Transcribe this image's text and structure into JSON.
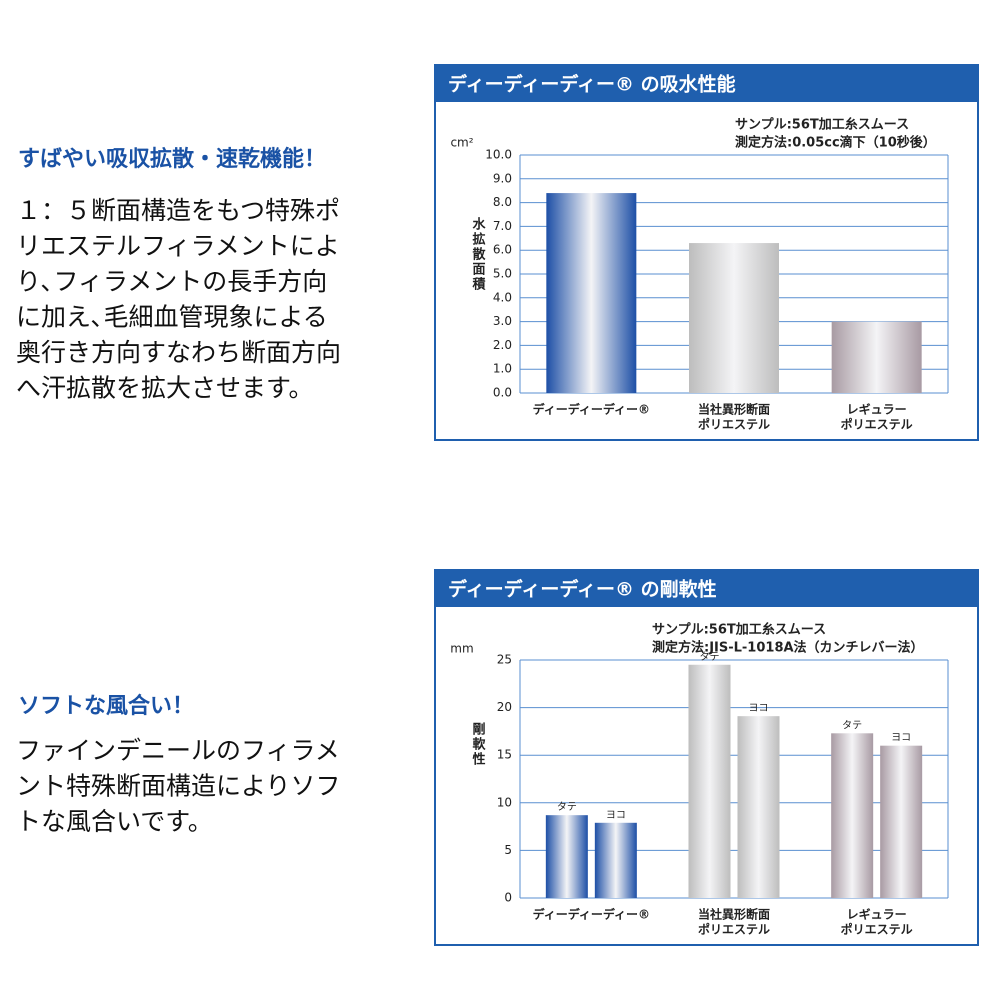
{
  "sections": [
    {
      "heading": "すばやい吸収拡散・速乾機能！",
      "lines": [
        "１：５断面構造をもつ特殊ポ",
        "リエステルフィラメントによ",
        "り､フィラメントの長手方向",
        "に加え､毛細血管現象による",
        "奥行き方向すなわち断面方向",
        "へ汗拡散を拡大させます。"
      ]
    },
    {
      "heading": "ソフトな風合い！",
      "lines": [
        "ファインデニールのフィラメ",
        "ント特殊断面構造によりソフ",
        "トな風合いです。"
      ]
    }
  ],
  "chart_data": [
    {
      "type": "bar",
      "title": "ディーディーディー® の吸水性能",
      "annotations": [
        "サンプル:56T加工糸スムース",
        "測定方法:0.05cc滴下（10秒後）"
      ],
      "unit": "cm²",
      "y_label": "水拡散面積",
      "categories": [
        [
          "ディーディーディー®"
        ],
        [
          "当社異形断面",
          "ポリエステル"
        ],
        [
          "レギュラー",
          "ポリエステル"
        ]
      ],
      "colors": [
        "#1d4fa6",
        "#bdbdbd",
        "#a89aa3"
      ],
      "values": [
        8.4,
        6.3,
        3.0
      ],
      "ylim": [
        0,
        10
      ],
      "yticks": [
        {
          "value": 0,
          "label": "0.0"
        },
        {
          "value": 1,
          "label": "1.0"
        },
        {
          "value": 2,
          "label": "2.0"
        },
        {
          "value": 3,
          "label": "3.0"
        },
        {
          "value": 4,
          "label": "4.0"
        },
        {
          "value": 5,
          "label": "5.0"
        },
        {
          "value": 6,
          "label": "6.0"
        },
        {
          "value": 7,
          "label": "7.0"
        },
        {
          "value": 8,
          "label": "8.0"
        },
        {
          "value": 9,
          "label": "9.0"
        },
        {
          "value": 10,
          "label": "10.0"
        }
      ],
      "grid": true
    },
    {
      "type": "bar",
      "title": "ディーディーディー® の剛軟性",
      "annotations": [
        "サンプル:56T加工糸スムース",
        "測定方法:JIS-L-1018A法（カンチレバー法）"
      ],
      "unit": "mm",
      "y_label": "剛軟性",
      "categories": [
        [
          "ディーディーディー®"
        ],
        [
          "当社異形断面",
          "ポリエステル"
        ],
        [
          "レギュラー",
          "ポリエステル"
        ]
      ],
      "colors": [
        "#1d4fa6",
        "#bdbdbd",
        "#a89aa3"
      ],
      "series": [
        {
          "name": "タテ",
          "values": [
            8.7,
            24.5,
            17.3
          ]
        },
        {
          "name": "ヨコ",
          "values": [
            7.9,
            19.1,
            16.0
          ]
        }
      ],
      "ylim": [
        0,
        25
      ],
      "yticks": [
        0,
        5,
        10,
        15,
        20,
        25
      ],
      "grid": true
    }
  ]
}
